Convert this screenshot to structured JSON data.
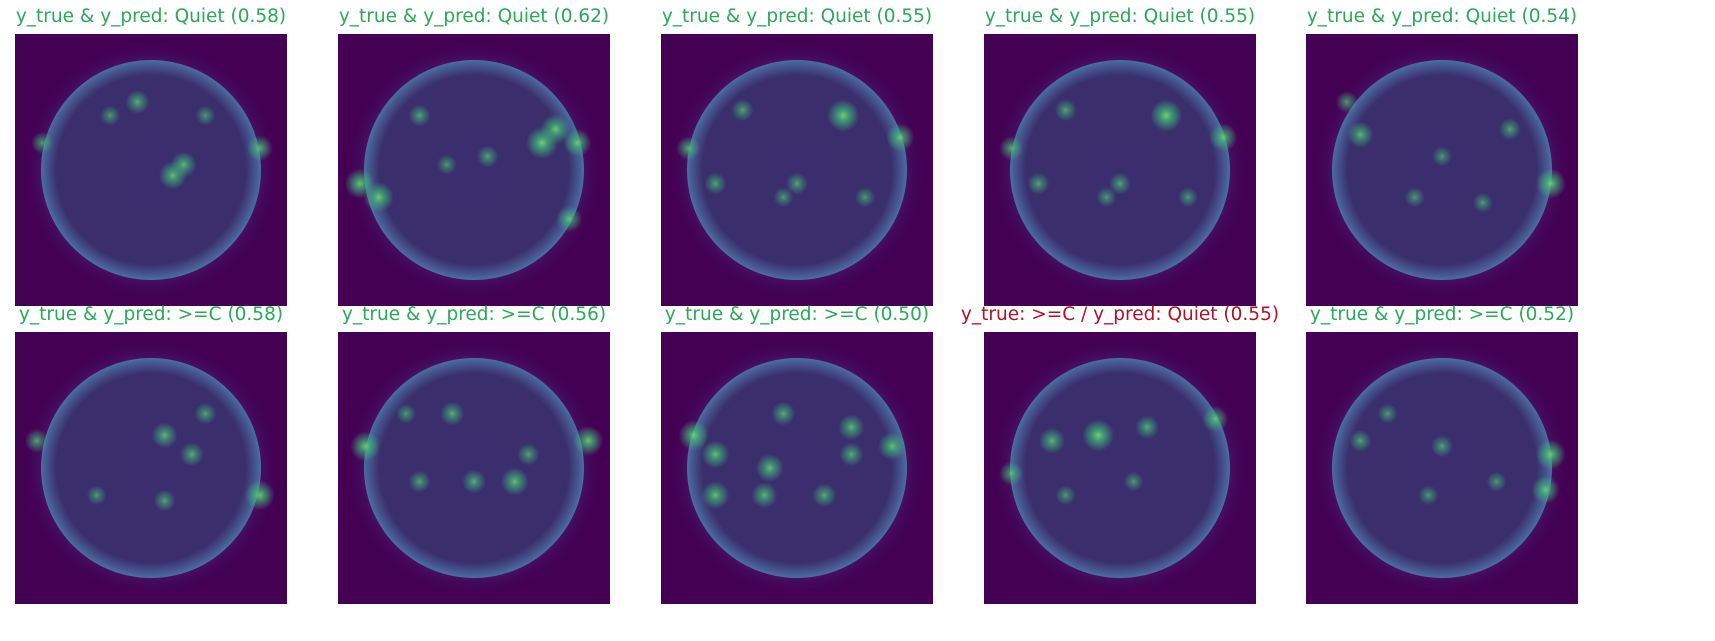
{
  "colors": {
    "correct": "#2ca85a",
    "incorrect": "#b0122a",
    "background": "#440154",
    "disk": "#3b2d6e",
    "limb": "#4a6fa0",
    "active_region": "#3fbf7a",
    "hot_spot": "#7ee06e"
  },
  "panels": [
    {
      "title": "y_true & y_pred: Quiet (0.58)",
      "y_true": "Quiet",
      "y_pred": "Quiet",
      "score": 0.58,
      "correct": true,
      "image": "solar-disk-image",
      "spots": [
        [
          0.45,
          0.25,
          0.6
        ],
        [
          0.58,
          0.52,
          0.8
        ],
        [
          0.62,
          0.48,
          0.7
        ],
        [
          0.1,
          0.4,
          0.5
        ],
        [
          0.9,
          0.42,
          0.7
        ],
        [
          0.35,
          0.3,
          0.4
        ],
        [
          0.7,
          0.3,
          0.4
        ]
      ]
    },
    {
      "title": "y_true & y_pred: Quiet (0.62)",
      "y_true": "Quiet",
      "y_pred": "Quiet",
      "score": 0.62,
      "correct": true,
      "image": "solar-disk-image",
      "spots": [
        [
          0.08,
          0.55,
          0.9
        ],
        [
          0.15,
          0.6,
          0.9
        ],
        [
          0.75,
          0.4,
          1.0
        ],
        [
          0.8,
          0.35,
          0.9
        ],
        [
          0.88,
          0.4,
          0.8
        ],
        [
          0.55,
          0.45,
          0.5
        ],
        [
          0.3,
          0.3,
          0.5
        ],
        [
          0.85,
          0.68,
          0.7
        ],
        [
          0.4,
          0.48,
          0.4
        ]
      ]
    },
    {
      "title": "y_true & y_pred: Quiet (0.55)",
      "y_true": "Quiet",
      "y_pred": "Quiet",
      "score": 0.55,
      "correct": true,
      "image": "solar-disk-image",
      "spots": [
        [
          0.67,
          0.3,
          1.0
        ],
        [
          0.88,
          0.38,
          0.8
        ],
        [
          0.1,
          0.42,
          0.6
        ],
        [
          0.3,
          0.28,
          0.5
        ],
        [
          0.5,
          0.55,
          0.5
        ],
        [
          0.2,
          0.55,
          0.5
        ],
        [
          0.75,
          0.6,
          0.4
        ],
        [
          0.45,
          0.6,
          0.4
        ]
      ]
    },
    {
      "title": "y_true & y_pred: Quiet (0.55)",
      "y_true": "Quiet",
      "y_pred": "Quiet",
      "score": 0.55,
      "correct": true,
      "image": "solar-disk-image",
      "spots": [
        [
          0.67,
          0.3,
          1.0
        ],
        [
          0.88,
          0.38,
          0.8
        ],
        [
          0.1,
          0.42,
          0.6
        ],
        [
          0.3,
          0.28,
          0.5
        ],
        [
          0.5,
          0.55,
          0.5
        ],
        [
          0.2,
          0.55,
          0.5
        ],
        [
          0.75,
          0.6,
          0.4
        ],
        [
          0.45,
          0.6,
          0.4
        ]
      ]
    },
    {
      "title": "y_true & y_pred: Quiet (0.54)",
      "y_true": "Quiet",
      "y_pred": "Quiet",
      "score": 0.54,
      "correct": true,
      "image": "solar-disk-image",
      "spots": [
        [
          0.2,
          0.37,
          0.7
        ],
        [
          0.15,
          0.25,
          0.5
        ],
        [
          0.9,
          0.55,
          0.9
        ],
        [
          0.75,
          0.35,
          0.5
        ],
        [
          0.5,
          0.45,
          0.4
        ],
        [
          0.4,
          0.6,
          0.4
        ],
        [
          0.65,
          0.62,
          0.4
        ]
      ]
    },
    {
      "title": "y_true & y_pred: >=C (0.58)",
      "y_true": ">=C",
      "y_pred": ">=C",
      "score": 0.58,
      "correct": true,
      "image": "solar-disk-image",
      "spots": [
        [
          0.55,
          0.38,
          0.7
        ],
        [
          0.65,
          0.45,
          0.6
        ],
        [
          0.9,
          0.6,
          0.9
        ],
        [
          0.08,
          0.4,
          0.6
        ],
        [
          0.3,
          0.6,
          0.4
        ],
        [
          0.55,
          0.62,
          0.5
        ],
        [
          0.7,
          0.3,
          0.5
        ]
      ]
    },
    {
      "title": "y_true & y_pred: >=C (0.56)",
      "y_true": ">=C",
      "y_pred": ">=C",
      "score": 0.56,
      "correct": true,
      "image": "solar-disk-image",
      "spots": [
        [
          0.1,
          0.42,
          0.9
        ],
        [
          0.92,
          0.4,
          0.9
        ],
        [
          0.42,
          0.3,
          0.6
        ],
        [
          0.65,
          0.55,
          0.8
        ],
        [
          0.5,
          0.55,
          0.6
        ],
        [
          0.3,
          0.55,
          0.5
        ],
        [
          0.7,
          0.45,
          0.5
        ],
        [
          0.25,
          0.3,
          0.4
        ]
      ]
    },
    {
      "title": "y_true & y_pred: >=C (0.50)",
      "y_true": ">=C",
      "y_pred": ">=C",
      "score": 0.5,
      "correct": true,
      "image": "solar-disk-image",
      "spots": [
        [
          0.12,
          0.38,
          0.9
        ],
        [
          0.2,
          0.45,
          0.8
        ],
        [
          0.4,
          0.5,
          0.8
        ],
        [
          0.38,
          0.6,
          0.7
        ],
        [
          0.2,
          0.6,
          0.8
        ],
        [
          0.6,
          0.6,
          0.6
        ],
        [
          0.7,
          0.35,
          0.7
        ],
        [
          0.85,
          0.42,
          0.8
        ],
        [
          0.45,
          0.3,
          0.6
        ],
        [
          0.7,
          0.45,
          0.6
        ]
      ]
    },
    {
      "title": "y_true: >=C / y_pred: Quiet (0.55)",
      "y_true": ">=C",
      "y_pred": "Quiet",
      "score": 0.55,
      "correct": false,
      "image": "solar-disk-image",
      "spots": [
        [
          0.42,
          0.38,
          1.0
        ],
        [
          0.25,
          0.4,
          0.7
        ],
        [
          0.1,
          0.52,
          0.6
        ],
        [
          0.85,
          0.32,
          0.7
        ],
        [
          0.6,
          0.35,
          0.6
        ],
        [
          0.55,
          0.55,
          0.4
        ],
        [
          0.3,
          0.6,
          0.4
        ]
      ]
    },
    {
      "title": "y_true & y_pred: >=C (0.52)",
      "y_true": ">=C",
      "y_pred": ">=C",
      "score": 0.52,
      "correct": true,
      "image": "solar-disk-image",
      "spots": [
        [
          0.9,
          0.45,
          0.9
        ],
        [
          0.88,
          0.58,
          0.8
        ],
        [
          0.2,
          0.4,
          0.5
        ],
        [
          0.5,
          0.42,
          0.5
        ],
        [
          0.45,
          0.6,
          0.4
        ],
        [
          0.7,
          0.55,
          0.4
        ],
        [
          0.3,
          0.3,
          0.4
        ]
      ]
    }
  ]
}
